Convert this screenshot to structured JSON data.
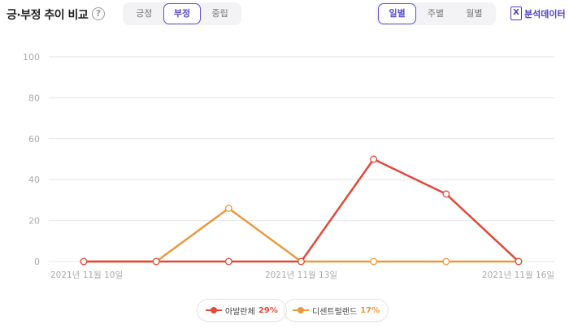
{
  "header": {
    "title": "긍·부정 추이 비교",
    "help": "?",
    "sentiment_tabs": [
      "긍정",
      "부정",
      "중립"
    ],
    "sentiment_active": 1,
    "period_tabs": [
      "일별",
      "주별",
      "월별"
    ],
    "period_active": 0,
    "analysis_label": "분석데이터",
    "analysis_icon": "excel-file-icon"
  },
  "colors": {
    "accent": "#5a4fd0",
    "series_red": "#e0493b",
    "series_orange": "#ea9a3e",
    "grid": "#e6e6e6"
  },
  "chart_data": {
    "type": "line",
    "title": "",
    "xlabel": "",
    "ylabel": "",
    "ylim": [
      0,
      100
    ],
    "yticks": [
      0,
      20,
      40,
      60,
      80,
      100
    ],
    "x": [
      "2021-11-10",
      "2021-11-11",
      "2021-11-12",
      "2021-11-13",
      "2021-11-14",
      "2021-11-15",
      "2021-11-16"
    ],
    "x_tick_labels": [
      {
        "index": 0,
        "label": "2021년 11월 10일"
      },
      {
        "index": 3,
        "label": "2021년 11월 13일"
      },
      {
        "index": 6,
        "label": "2021년 11월 16일"
      }
    ],
    "grid": true,
    "legend_position": "bottom",
    "series": [
      {
        "name": "아발란체",
        "percent": "29%",
        "color": "#e0493b",
        "values": [
          0,
          0,
          0,
          0,
          50,
          33,
          0
        ]
      },
      {
        "name": "디센트럴랜드",
        "percent": "17%",
        "color": "#ea9a3e",
        "values": [
          0,
          0,
          26,
          0,
          0,
          0,
          0
        ]
      }
    ]
  }
}
